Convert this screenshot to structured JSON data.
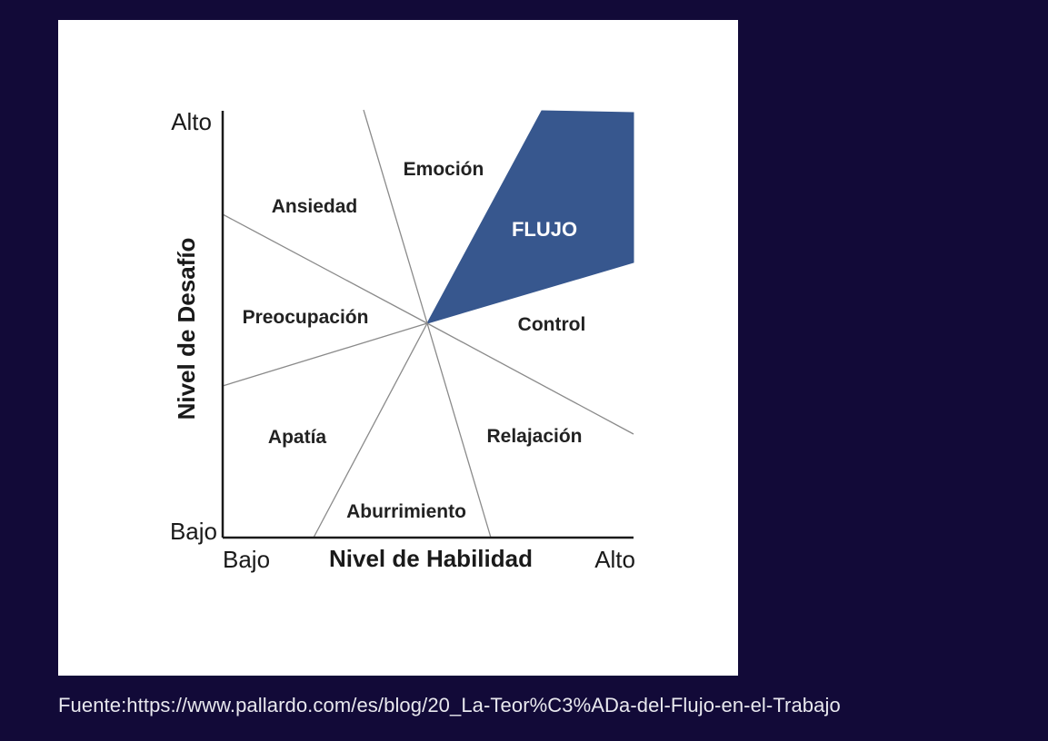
{
  "diagram": {
    "axes": {
      "y_title": "Nivel de Desafío",
      "x_title": "Nivel de Habilidad",
      "y_high": "Alto",
      "y_low": "Bajo",
      "x_low": "Bajo",
      "x_high": "Alto"
    },
    "regions": {
      "emocion": "Emoción",
      "ansiedad": "Ansiedad",
      "flujo": "FLUJO",
      "preocupacion": "Preocupación",
      "control": "Control",
      "apatia": "Apatía",
      "relajacion": "Relajación",
      "aburrimiento": "Aburrimiento"
    },
    "colors": {
      "flow_region": "#37578e",
      "background": "#120a38",
      "card": "#ffffff"
    }
  },
  "caption": "Fuente:https://www.pallardo.com/es/blog/20_La-Teor%C3%ADa-del-Flujo-en-el-Trabajo"
}
